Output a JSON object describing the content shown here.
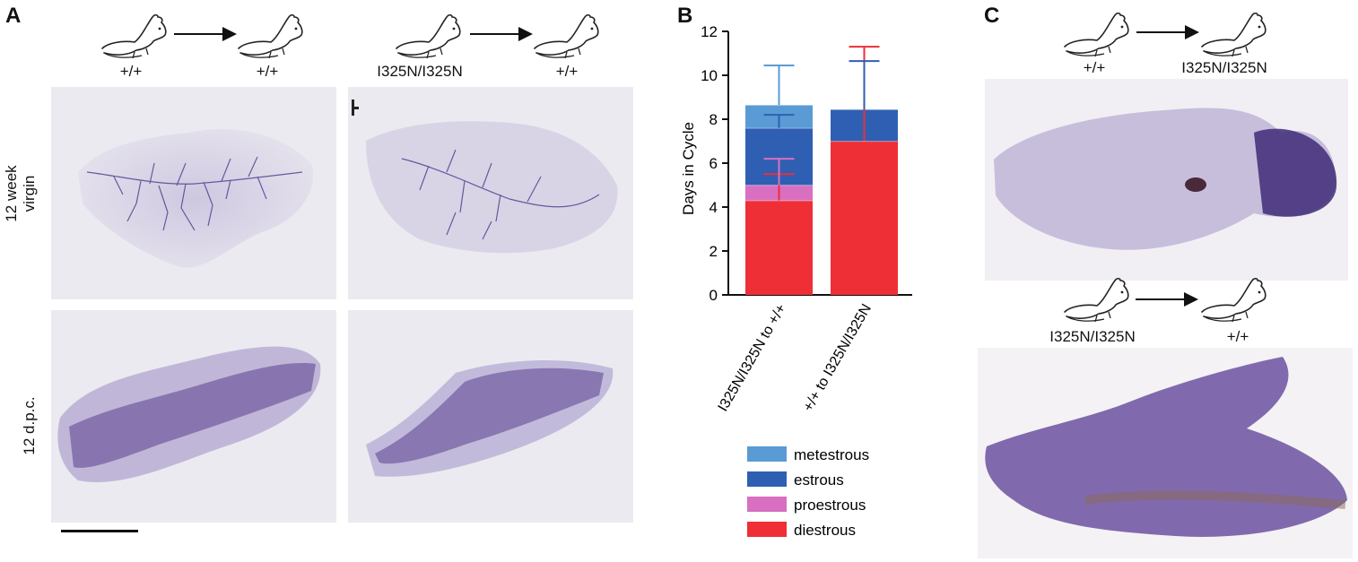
{
  "panels": {
    "a": "A",
    "b": "B",
    "c": "C"
  },
  "panel_a": {
    "transfer_left": {
      "donor": "+/+",
      "recipient": "+/+"
    },
    "transfer_right": {
      "donor": "I325N/I325N",
      "recipient": "+/+"
    },
    "row_labels": {
      "top_line1": "12 week",
      "top_line2": "virgin",
      "bottom": "12 d.p.c."
    }
  },
  "panel_c": {
    "transfer_top": {
      "donor": "+/+",
      "recipient": "I325N/I325N"
    },
    "transfer_bottom": {
      "donor": "I325N/I325N",
      "recipient": "+/+"
    }
  },
  "colors": {
    "metestrous": "#5b9bd5",
    "estrous": "#2f5fb3",
    "proestrous": "#d86fc0",
    "diestrous": "#ee2f36",
    "stain": "#5a3f8f"
  },
  "chart_data": {
    "type": "bar",
    "stacked": true,
    "ylabel": "Days in Cycle",
    "xlabel": "",
    "ylim": [
      0,
      12
    ],
    "yticks": [
      0,
      2,
      4,
      6,
      8,
      10,
      12
    ],
    "categories": [
      "I325N/I325N to +/+",
      "+/+ to I325N/I325N"
    ],
    "series": [
      {
        "name": "diestrous",
        "values": [
          4.3,
          7.0
        ],
        "err": [
          1.2,
          4.3
        ]
      },
      {
        "name": "proestrous",
        "values": [
          0.7,
          0.0
        ],
        "err": [
          1.2,
          0
        ]
      },
      {
        "name": "estrous",
        "values": [
          2.6,
          1.45
        ],
        "err": [
          0.6,
          2.2
        ]
      },
      {
        "name": "metestrous",
        "values": [
          1.05,
          0.0
        ],
        "err": [
          1.8,
          0
        ]
      }
    ],
    "legend_order": [
      "metestrous",
      "estrous",
      "proestrous",
      "diestrous"
    ],
    "legend_position": "bottom"
  }
}
